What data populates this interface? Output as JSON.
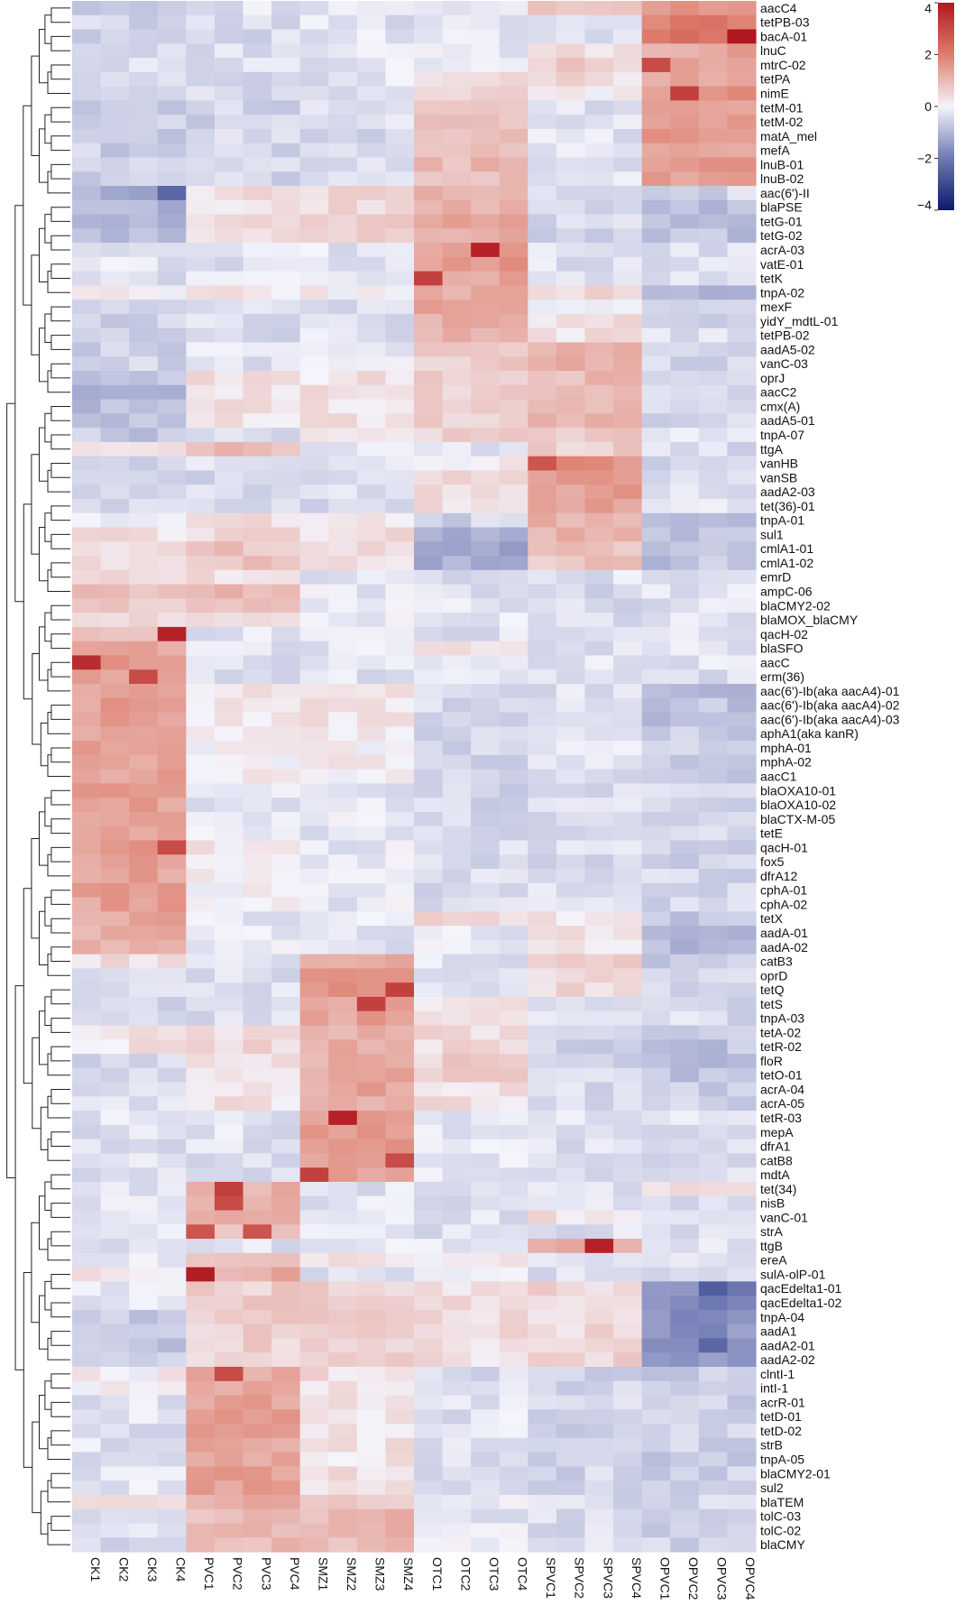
{
  "chart_data": {
    "type": "heatmap",
    "title": "",
    "columns": [
      "CK1",
      "CK2",
      "CK3",
      "CK4",
      "PVC1",
      "PVC2",
      "PVC3",
      "PVC4",
      "SMZ1",
      "SMZ2",
      "SMZ3",
      "SMZ4",
      "OTC1",
      "OTC2",
      "OTC3",
      "OTC4",
      "SPVC1",
      "SPVC2",
      "SPVC3",
      "SPVC4",
      "OPVC1",
      "OPVC2",
      "OPVC3",
      "OPVC4"
    ],
    "rows": [
      "aacC4",
      "tetPB-03",
      "bacA-01",
      "lnuC",
      "mtrC-02",
      "tetPA",
      "nimE",
      "tetM-01",
      "tetM-02",
      "matA_mel",
      "mefA",
      "lnuB-01",
      "lnuB-02",
      "aac(6')-II",
      "blaPSE",
      "tetG-01",
      "tetG-02",
      "acrA-03",
      "vatE-01",
      "tetK",
      "tnpA-02",
      "mexF",
      "yidY_mdtL-01",
      "tetPB-02",
      "aadA5-02",
      "vanC-03",
      "oprJ",
      "aacC2",
      "cmx(A)",
      "aadA5-01",
      "tnpA-07",
      "ttgA",
      "vanHB",
      "vanSB",
      "aadA2-03",
      "tet(36)-01",
      "tnpA-01",
      "sul1",
      "cmlA1-01",
      "cmlA1-02",
      "emrD",
      "ampC-06",
      "blaCMY2-02",
      "blaMOX_blaCMY",
      "qacH-02",
      "blaSFO",
      "aacC",
      "erm(36)",
      "aac(6')-Ib(aka aacA4)-01",
      "aac(6')-Ib(aka aacA4)-02",
      "aac(6')-Ib(aka aacA4)-03",
      "aphA1(aka kanR)",
      "mphA-01",
      "mphA-02",
      "aacC1",
      "blaOXA10-01",
      "blaOXA10-02",
      "blaCTX-M-05",
      "tetE",
      "qacH-01",
      "fox5",
      "dfrA12",
      "cphA-01",
      "cphA-02",
      "tetX",
      "aadA-01",
      "aadA-02",
      "catB3",
      "oprD",
      "tetQ",
      "tetS",
      "tnpA-03",
      "tetA-02",
      "tetR-02",
      "floR",
      "tetO-01",
      "acrA-04",
      "acrA-05",
      "tetR-03",
      "mepA",
      "dfrA1",
      "catB8",
      "mdtA",
      "tet(34)",
      "nisB",
      "vanC-01",
      "strA",
      "ttgB",
      "ereA",
      "sulA-olP-01",
      "qacEdelta1-01",
      "qacEdelta1-02",
      "tnpA-04",
      "aadA1",
      "aadA2-01",
      "aadA2-02",
      "clntI-1",
      "intI-1",
      "acrR-01",
      "tetD-01",
      "tetD-02",
      "strB",
      "tnpA-05",
      "blaCMY2-01",
      "sul2",
      "blaTEM",
      "tolC-03",
      "tolC-02",
      "blaCMY"
    ],
    "colorbar": {
      "range": [
        -4,
        4
      ],
      "ticks": [
        "4",
        "2",
        "0",
        "−2",
        "−4"
      ],
      "colors": {
        "low": "#0a1a6e",
        "mid": "#f4f4fb",
        "high": "#b0171f"
      }
    },
    "dendrogram": "row-clustering-left",
    "approximate_values_by_group": {
      "groups": [
        "CK",
        "PVC",
        "SMZ",
        "OTC",
        "SPVC",
        "OPVC"
      ],
      "rows": {
        "aacC4": [
          -0.5,
          -0.3,
          -0.3,
          -0.2,
          0.6,
          1.6
        ],
        "tetPB-03": [
          -0.5,
          -0.4,
          -0.3,
          -0.2,
          -0.3,
          2.0
        ],
        "bacA-01": [
          -0.5,
          -0.4,
          -0.3,
          -0.3,
          -0.4,
          2.2
        ],
        "lnuC": [
          -0.5,
          -0.3,
          -0.2,
          -0.2,
          0.3,
          1.3
        ],
        "mtrC-02": [
          -0.4,
          -0.3,
          -0.2,
          -0.1,
          0.6,
          1.5
        ],
        "tetPA": [
          -0.5,
          -0.4,
          -0.3,
          0.4,
          0.4,
          1.4
        ],
        "nimE": [
          -0.6,
          -0.5,
          -0.4,
          0.6,
          0.1,
          1.6
        ],
        "tetM-01": [
          -0.6,
          -0.5,
          -0.4,
          1.0,
          -0.3,
          1.5
        ],
        "tetM-02": [
          -0.6,
          -0.5,
          -0.4,
          1.0,
          -0.3,
          1.5
        ],
        "matA_mel": [
          -0.6,
          -0.5,
          -0.4,
          1.0,
          -0.3,
          1.5
        ],
        "mefA": [
          -0.6,
          -0.5,
          -0.4,
          1.0,
          -0.3,
          1.5
        ],
        "lnuB-01": [
          -0.6,
          -0.5,
          -0.4,
          1.0,
          -0.3,
          1.5
        ],
        "lnuB-02": [
          -0.6,
          -0.5,
          -0.4,
          1.0,
          -0.3,
          1.5
        ],
        "aac(6')-II": [
          -1.2,
          0.4,
          0.5,
          1.2,
          -0.5,
          -0.5
        ],
        "blaPSE": [
          -1.0,
          0.2,
          0.4,
          1.2,
          -0.6,
          -0.8
        ],
        "tetG-01": [
          -1.0,
          0.4,
          0.6,
          1.2,
          -0.5,
          -0.8
        ],
        "tetG-02": [
          -1.0,
          0.4,
          0.6,
          1.2,
          -0.5,
          -0.8
        ],
        "acrA-03": [
          -0.3,
          -0.3,
          -0.3,
          1.5,
          -0.3,
          -0.3
        ],
        "vatE-01": [
          -0.3,
          -0.3,
          -0.3,
          1.5,
          -0.3,
          -0.3
        ],
        "tetK": [
          -0.3,
          -0.3,
          -0.3,
          1.4,
          -0.3,
          -0.3
        ],
        "tnpA-02": [
          0.1,
          0.2,
          0.1,
          1.3,
          0.4,
          -1.0
        ],
        "mexF": [
          -0.6,
          -0.4,
          -0.3,
          1.3,
          -0.3,
          -0.5
        ],
        "yidY_mdtL-01": [
          -0.5,
          -0.4,
          -0.3,
          1.2,
          0.3,
          -0.4
        ],
        "tetPB-02": [
          -0.5,
          -0.4,
          -0.3,
          1.2,
          0.3,
          -0.4
        ],
        "aadA5-02": [
          -0.6,
          -0.2,
          -0.2,
          0.7,
          1.2,
          -0.5
        ],
        "vanC-03": [
          -0.5,
          -0.3,
          -0.2,
          0.7,
          1.2,
          -0.5
        ],
        "oprJ": [
          -0.9,
          0.3,
          0.3,
          0.6,
          1.0,
          -0.5
        ],
        "aacC2": [
          -0.9,
          0.3,
          0.3,
          0.6,
          1.0,
          -0.5
        ],
        "cmx(A)": [
          -0.9,
          0.3,
          0.3,
          0.6,
          1.0,
          -0.5
        ],
        "aadA5-01": [
          -0.8,
          0.2,
          0.3,
          0.7,
          1.0,
          -0.5
        ],
        "tnpA-07": [
          -0.7,
          -0.3,
          0.2,
          0.6,
          0.8,
          -0.3
        ],
        "ttgA": [
          0.2,
          0.9,
          -0.3,
          -0.2,
          0.6,
          -0.4
        ],
        "vanHB": [
          -0.4,
          -0.4,
          -0.4,
          0.2,
          1.6,
          -0.4
        ],
        "vanSB": [
          -0.4,
          -0.4,
          -0.4,
          0.5,
          1.4,
          -0.3
        ],
        "aadA2-03": [
          -0.4,
          -0.4,
          -0.4,
          0.3,
          1.4,
          -0.3
        ],
        "tet(36)-01": [
          -0.4,
          -0.4,
          -0.4,
          0.3,
          1.5,
          -0.3
        ],
        "tnpA-01": [
          -0.3,
          0.3,
          0.1,
          -0.5,
          1.2,
          -0.7
        ],
        "sul1": [
          0.3,
          0.4,
          0.4,
          -1.0,
          1.0,
          -0.8
        ],
        "cmlA1-01": [
          0.4,
          0.8,
          0.3,
          -1.2,
          0.8,
          -0.8
        ],
        "cmlA1-02": [
          0.4,
          0.8,
          0.3,
          -1.2,
          0.8,
          -0.8
        ],
        "emrD": [
          0.4,
          0.4,
          -0.2,
          -0.3,
          -0.3,
          -0.4
        ],
        "ampC-06": [
          0.8,
          1.0,
          -0.2,
          -0.3,
          -0.4,
          -0.3
        ],
        "blaCMY2-02": [
          0.8,
          0.8,
          -0.2,
          -0.3,
          -0.4,
          -0.3
        ],
        "blaMOX_blaCMY": [
          0.6,
          0.6,
          -0.2,
          -0.3,
          -0.4,
          -0.3
        ],
        "qacH-02": [
          0.8,
          -0.3,
          -0.3,
          -0.3,
          -0.3,
          -0.3
        ],
        "blaSFO": [
          1.2,
          -0.3,
          -0.3,
          0.4,
          -0.3,
          -0.3
        ],
        "aacC": [
          1.6,
          -0.3,
          -0.3,
          -0.3,
          -0.3,
          -0.3
        ],
        "erm(36)": [
          1.5,
          -0.3,
          -0.3,
          -0.3,
          -0.3,
          -0.3
        ],
        "aac(6')-Ib(aka aacA4)-01": [
          1.4,
          0.2,
          0.3,
          -0.4,
          -0.3,
          -0.8
        ],
        "aac(6')-Ib(aka aacA4)-02": [
          1.4,
          0.2,
          0.3,
          -0.4,
          -0.3,
          -0.8
        ],
        "aac(6')-Ib(aka aacA4)-03": [
          1.4,
          0.2,
          0.3,
          -0.4,
          -0.3,
          -0.8
        ],
        "aphA1(aka kanR)": [
          1.4,
          0.1,
          0.1,
          -0.5,
          -0.3,
          -0.6
        ],
        "mphA-01": [
          1.4,
          0.1,
          0.1,
          -0.5,
          -0.3,
          -0.6
        ],
        "mphA-02": [
          1.4,
          0.1,
          0.1,
          -0.5,
          -0.3,
          -0.6
        ],
        "aacC1": [
          1.4,
          0.1,
          0.1,
          -0.5,
          -0.3,
          -0.6
        ],
        "blaOXA10-01": [
          1.4,
          -0.2,
          -0.2,
          -0.5,
          -0.4,
          -0.5
        ],
        "blaOXA10-02": [
          1.4,
          -0.2,
          -0.2,
          -0.5,
          -0.4,
          -0.5
        ],
        "blaCTX-M-05": [
          1.4,
          -0.2,
          -0.2,
          -0.4,
          -0.4,
          -0.5
        ],
        "tetE": [
          1.4,
          -0.2,
          -0.2,
          -0.4,
          -0.4,
          -0.5
        ],
        "qacH-01": [
          1.5,
          0.2,
          -0.2,
          -0.4,
          -0.4,
          -0.5
        ],
        "fox5": [
          1.4,
          0.1,
          -0.2,
          -0.4,
          -0.4,
          -0.5
        ],
        "dfrA12": [
          1.4,
          0.1,
          -0.2,
          -0.4,
          -0.4,
          -0.5
        ],
        "cphA-01": [
          1.4,
          0.1,
          -0.2,
          -0.4,
          -0.4,
          -0.5
        ],
        "cphA-02": [
          1.4,
          0.1,
          -0.2,
          -0.4,
          -0.4,
          -0.5
        ],
        "tetX": [
          1.3,
          -0.2,
          -0.2,
          0.4,
          0.3,
          -0.8
        ],
        "aadA-01": [
          1.2,
          -0.2,
          -0.3,
          -0.2,
          0.3,
          -1.0
        ],
        "aadA-02": [
          1.2,
          -0.2,
          -0.3,
          -0.2,
          0.3,
          -1.0
        ],
        "catB3": [
          0.3,
          -0.4,
          1.4,
          -0.3,
          0.6,
          -0.6
        ],
        "oprD": [
          -0.4,
          -0.4,
          1.4,
          -0.3,
          0.5,
          -0.4
        ],
        "tetQ": [
          -0.4,
          -0.4,
          1.5,
          -0.2,
          0.5,
          -0.4
        ],
        "tetS": [
          -0.4,
          -0.4,
          1.4,
          0.3,
          -0.3,
          -0.4
        ],
        "tnpA-03": [
          -0.4,
          -0.4,
          1.4,
          0.3,
          -0.3,
          -0.4
        ],
        "tetA-02": [
          0.3,
          0.5,
          1.2,
          0.4,
          -0.5,
          -0.8
        ],
        "tetR-02": [
          0.3,
          0.5,
          1.2,
          0.4,
          -0.5,
          -0.8
        ],
        "floR": [
          -0.5,
          0.3,
          1.2,
          0.6,
          -0.5,
          -0.8
        ],
        "tetO-01": [
          -0.5,
          0.3,
          1.2,
          0.6,
          -0.5,
          -0.8
        ],
        "acrA-04": [
          -0.3,
          0.3,
          1.3,
          0.3,
          -0.4,
          -0.6
        ],
        "acrA-05": [
          -0.3,
          0.3,
          1.3,
          0.3,
          -0.4,
          -0.6
        ],
        "tetR-03": [
          -0.3,
          -0.3,
          1.6,
          -0.2,
          -0.3,
          -0.3
        ],
        "mepA": [
          -0.3,
          -0.3,
          1.6,
          -0.2,
          -0.3,
          -0.3
        ],
        "dfrA1": [
          -0.3,
          -0.3,
          1.5,
          -0.2,
          -0.3,
          -0.3
        ],
        "catB8": [
          -0.3,
          -0.3,
          1.5,
          -0.2,
          -0.3,
          -0.3
        ],
        "mdtA": [
          -0.3,
          -0.3,
          1.5,
          -0.2,
          -0.3,
          -0.3
        ],
        "tet(34)": [
          -0.2,
          1.2,
          -0.3,
          -0.3,
          -0.3,
          0.4
        ],
        "nisB": [
          -0.2,
          1.3,
          -0.3,
          -0.3,
          -0.3,
          -0.3
        ],
        "vanC-01": [
          -0.3,
          1.0,
          -0.3,
          -0.3,
          0.3,
          -0.3
        ],
        "strA": [
          -0.3,
          1.0,
          -0.3,
          -0.3,
          -0.3,
          -0.3
        ],
        "ttgB": [
          -0.3,
          -0.3,
          -0.3,
          -0.3,
          1.2,
          -0.3
        ],
        "ereA": [
          -0.3,
          0.6,
          0.4,
          0.2,
          -0.3,
          -0.3
        ],
        "sulA-olP-01": [
          0.2,
          1.2,
          -0.3,
          -0.3,
          -0.3,
          -0.3
        ],
        "qacEdelta1-01": [
          -0.2,
          0.6,
          0.6,
          0.4,
          0.5,
          -1.8
        ],
        "qacEdelta1-02": [
          -0.2,
          0.6,
          0.6,
          0.4,
          0.5,
          -1.8
        ],
        "tnpA-04": [
          -0.7,
          0.6,
          0.6,
          0.4,
          0.5,
          -1.6
        ],
        "aadA1": [
          -0.7,
          0.6,
          0.6,
          0.4,
          0.5,
          -1.6
        ],
        "aadA2-01": [
          -0.7,
          0.6,
          0.6,
          0.4,
          0.5,
          -1.6
        ],
        "aadA2-02": [
          -0.7,
          0.6,
          0.6,
          0.4,
          0.5,
          -1.6
        ],
        "clntI-1": [
          0.1,
          1.3,
          0.4,
          -0.4,
          -0.5,
          -0.6
        ],
        "intI-1": [
          0.1,
          1.3,
          0.4,
          -0.4,
          -0.5,
          -0.6
        ],
        "acrR-01": [
          -0.3,
          1.4,
          0.3,
          -0.3,
          -0.5,
          -0.6
        ],
        "tetD-01": [
          -0.3,
          1.4,
          0.3,
          -0.3,
          -0.5,
          -0.6
        ],
        "tetD-02": [
          -0.3,
          1.4,
          0.3,
          -0.3,
          -0.5,
          -0.6
        ],
        "strB": [
          -0.3,
          1.4,
          0.3,
          -0.3,
          -0.5,
          -0.6
        ],
        "tnpA-05": [
          -0.3,
          1.4,
          0.3,
          -0.3,
          -0.5,
          -0.6
        ],
        "blaCMY2-01": [
          -0.3,
          1.4,
          0.3,
          -0.3,
          -0.5,
          -0.6
        ],
        "sul2": [
          -0.3,
          1.4,
          0.3,
          -0.3,
          -0.5,
          -0.6
        ],
        "blaTEM": [
          0.2,
          1.2,
          0.6,
          -0.2,
          -0.4,
          -0.5
        ],
        "tolC-03": [
          -0.4,
          1.0,
          1.0,
          -0.2,
          -0.4,
          -0.5
        ],
        "tolC-02": [
          -0.4,
          1.0,
          1.0,
          -0.2,
          -0.4,
          -0.5
        ],
        "blaCMY": [
          -0.4,
          1.0,
          1.0,
          -0.2,
          -0.4,
          -0.5
        ]
      },
      "highlights": [
        {
          "row": "bacA-01",
          "column": "OPVC4",
          "value": 4.0
        },
        {
          "row": "acrA-03",
          "column": "OTC3",
          "value": 3.8
        },
        {
          "row": "qacH-02",
          "column": "CK4",
          "value": 3.8
        },
        {
          "row": "aacC",
          "column": "CK1",
          "value": 3.6
        },
        {
          "row": "erm(36)",
          "column": "CK3",
          "value": 3.0
        },
        {
          "row": "tetK",
          "column": "OTC1",
          "value": 3.2
        },
        {
          "row": "tetR-03",
          "column": "SMZ2",
          "value": 3.8
        },
        {
          "row": "ttgB",
          "column": "SPVC3",
          "value": 3.8
        },
        {
          "row": "sulA-olP-01",
          "column": "PVC1",
          "value": 3.9
        },
        {
          "row": "tet(34)",
          "column": "PVC2",
          "value": 3.2
        },
        {
          "row": "nimE",
          "column": "OPVC2",
          "value": 3.2
        },
        {
          "row": "mtrC-02",
          "column": "OPVC1",
          "value": 3.0
        },
        {
          "row": "tetS",
          "column": "SMZ3",
          "value": 3.2
        },
        {
          "row": "tetQ",
          "column": "SMZ4",
          "value": 3.2
        },
        {
          "row": "vanHB",
          "column": "SPVC1",
          "value": 2.8
        },
        {
          "row": "qacH-01",
          "column": "CK4",
          "value": 3.0
        },
        {
          "row": "clntI-1",
          "column": "PVC2",
          "value": 3.0
        },
        {
          "row": "mdtA",
          "column": "SMZ1",
          "value": 3.2
        },
        {
          "row": "catB8",
          "column": "SMZ4",
          "value": 3.0
        },
        {
          "row": "nisB",
          "column": "PVC2",
          "value": 3.0
        },
        {
          "row": "strA",
          "column": "PVC1",
          "value": 2.8
        },
        {
          "row": "strA",
          "column": "PVC3",
          "value": 2.8
        },
        {
          "row": "qacEdelta1-01",
          "column": "OPVC3",
          "value": -2.6
        },
        {
          "row": "aadA2-01",
          "column": "OPVC3",
          "value": -2.4
        },
        {
          "row": "aac(6')-II",
          "column": "CK4",
          "value": -2.4
        }
      ]
    }
  }
}
